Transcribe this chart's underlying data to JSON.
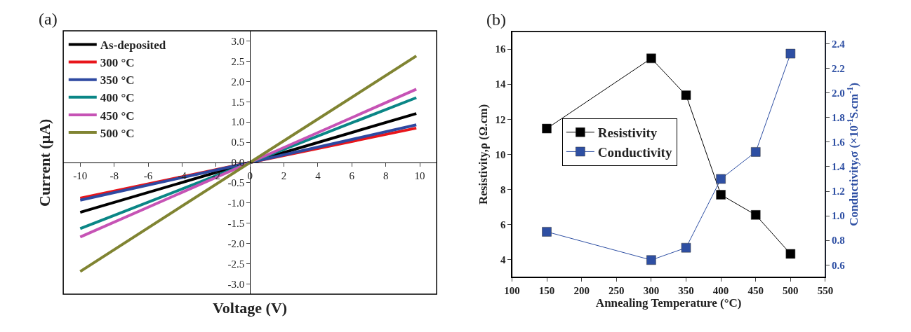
{
  "chart_data": [
    {
      "type": "line",
      "annotations": [
        "(a)"
      ],
      "xlabel": "Voltage (V)",
      "ylabel": "Current (µA)",
      "xlim": [
        -11,
        11
      ],
      "xticks": [
        -10,
        -8,
        -6,
        -4,
        -2,
        0,
        2,
        4,
        6,
        8,
        10
      ],
      "ylim": [
        -3.25,
        3.25
      ],
      "yticks": [
        {
          "value": -3,
          "label": "-3.0"
        },
        -2.5,
        {
          "value": -2,
          "label": "-2.0"
        },
        -1.5,
        {
          "value": -1,
          "label": "-1.0"
        },
        -0.5,
        {
          "value": 0,
          "label": "0.0"
        },
        0.5,
        {
          "value": 1,
          "label": "1.0"
        },
        1.5,
        {
          "value": 2,
          "label": "2.0"
        },
        2.5,
        {
          "value": 3,
          "label": "3.0"
        }
      ],
      "legend": "top left",
      "marker": "none",
      "line_style": "solid",
      "series": [
        {
          "name": "As-deposited",
          "color": "#000000",
          "x": [
            -10,
            0,
            9.8
          ],
          "values": [
            -1.23,
            0,
            1.21
          ]
        },
        {
          "name": "300 °C",
          "color": "#e8151b",
          "x": [
            -10,
            0,
            9.8
          ],
          "values": [
            -0.88,
            0,
            0.85
          ]
        },
        {
          "name": "350 °C",
          "color": "#2e49a1",
          "x": [
            -10,
            0,
            9.8
          ],
          "values": [
            -0.93,
            0,
            0.93
          ]
        },
        {
          "name": "400 °C",
          "color": "#0a8686",
          "x": [
            -10,
            0,
            9.8
          ],
          "values": [
            -1.63,
            0,
            1.6
          ]
        },
        {
          "name": "450 °C",
          "color": "#c653b5",
          "x": [
            -10,
            0,
            9.8
          ],
          "values": [
            -1.84,
            0,
            1.81
          ]
        },
        {
          "name": "500 °C",
          "color": "#808432",
          "x": [
            -10,
            0,
            9.8
          ],
          "values": [
            -2.69,
            0,
            2.63
          ]
        }
      ]
    },
    {
      "type": "line",
      "annotations": [
        "(b)"
      ],
      "xlabel": "Annealing Temperature (°C)",
      "ylabel": "Resistivity,ρ (Ω.cm)",
      "y2label": "Conductivity,σ (×10$^{-1}$S.cm$^{-1}$)",
      "xlim": [
        100,
        550
      ],
      "xticks": [
        100,
        150,
        200,
        250,
        300,
        350,
        400,
        450,
        500,
        550
      ],
      "ylim": [
        3,
        17
      ],
      "yticks": [
        4,
        6,
        8,
        10,
        12,
        14,
        16
      ],
      "y2lim": [
        0.5,
        2.5
      ],
      "y2ticks": [
        0.6,
        0.8,
        {
          "value": 1,
          "label": "1.0"
        },
        1.2,
        1.4,
        1.6,
        1.8,
        {
          "value": 2,
          "label": "2.0"
        },
        2.2,
        2.4
      ],
      "legend": "left",
      "marker": "square",
      "line_style": "solid",
      "series": [
        {
          "name": "Resistivity",
          "color": "#000000",
          "x": [
            150,
            300,
            350,
            400,
            450,
            500
          ],
          "values": [
            11.47,
            15.47,
            13.37,
            7.7,
            6.55,
            4.33
          ]
        },
        {
          "name": "Conductivity",
          "color": "#2e4fa3",
          "axis": "y2",
          "x": [
            150,
            300,
            350,
            400,
            450,
            500
          ],
          "values": [
            0.87,
            0.64,
            0.74,
            1.3,
            1.52,
            2.32
          ]
        }
      ]
    }
  ]
}
